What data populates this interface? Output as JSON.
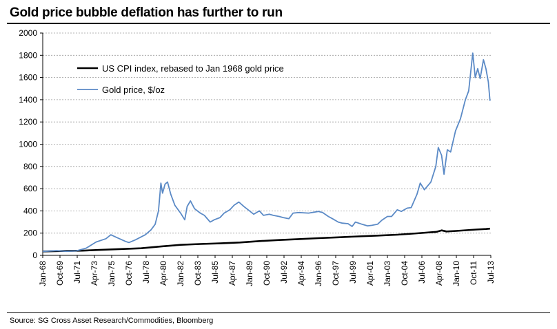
{
  "title": "Gold price bubble deflation has further to run",
  "source": "Source: SG Cross Asset Research/Commodities, Bloomberg",
  "chart_data": {
    "type": "line",
    "title": "Gold price bubble deflation has further to run",
    "xlabel": "",
    "ylabel": "",
    "ylim": [
      0,
      2000
    ],
    "yticks": [
      0,
      200,
      400,
      600,
      800,
      1000,
      1200,
      1400,
      1600,
      1800,
      2000
    ],
    "ytick_labels": [
      "0",
      "200",
      "400",
      "600",
      "800",
      "1000",
      "1200",
      "1400",
      "1600",
      "1800",
      "2000"
    ],
    "xlim": [
      "1968-01",
      "2013-07"
    ],
    "xtick_labels": [
      "Jan-68",
      "Oct-69",
      "Jul-71",
      "Apr-73",
      "Jan-75",
      "Oct-76",
      "Jul-78",
      "Apr-80",
      "Jan-82",
      "Oct-83",
      "Jul-85",
      "Apr-87",
      "Jan-89",
      "Oct-90",
      "Jul-92",
      "Apr-94",
      "Jan-96",
      "Oct-97",
      "Jul-99",
      "Apr-01",
      "Jan-03",
      "Oct-04",
      "Jul-06",
      "Apr-08",
      "Jan-10",
      "Oct-11",
      "Jul-13"
    ],
    "grid": true,
    "legend_position": "top-left",
    "colors": {
      "cpi": "#000000",
      "gold": "#5b8ac6"
    },
    "series": [
      {
        "name": "US CPI index, rebased to Jan 1968 gold price",
        "color": "#000000",
        "points": [
          [
            "1968-01",
            35
          ],
          [
            "1970-01",
            39
          ],
          [
            "1972-01",
            42
          ],
          [
            "1974-01",
            50
          ],
          [
            "1976-01",
            57
          ],
          [
            "1978-01",
            64
          ],
          [
            "1980-01",
            80
          ],
          [
            "1982-01",
            95
          ],
          [
            "1984-01",
            102
          ],
          [
            "1986-01",
            108
          ],
          [
            "1988-01",
            116
          ],
          [
            "1990-01",
            128
          ],
          [
            "1992-01",
            138
          ],
          [
            "1994-01",
            146
          ],
          [
            "1996-01",
            155
          ],
          [
            "1998-01",
            162
          ],
          [
            "2000-01",
            170
          ],
          [
            "2002-01",
            178
          ],
          [
            "2004-01",
            186
          ],
          [
            "2006-01",
            198
          ],
          [
            "2008-01",
            212
          ],
          [
            "2008-07",
            225
          ],
          [
            "2009-01",
            215
          ],
          [
            "2010-01",
            220
          ],
          [
            "2012-01",
            232
          ],
          [
            "2013-01",
            237
          ],
          [
            "2013-06",
            240
          ]
        ]
      },
      {
        "name": "Gold price, $/oz",
        "color": "#5b8ac6",
        "points": [
          [
            "1968-01",
            35
          ],
          [
            "1969-06",
            42
          ],
          [
            "1970-06",
            36
          ],
          [
            "1971-06",
            40
          ],
          [
            "1972-06",
            65
          ],
          [
            "1973-06",
            120
          ],
          [
            "1974-06",
            150
          ],
          [
            "1974-12",
            185
          ],
          [
            "1975-06",
            165
          ],
          [
            "1976-06",
            125
          ],
          [
            "1976-10",
            115
          ],
          [
            "1977-06",
            140
          ],
          [
            "1978-06",
            185
          ],
          [
            "1979-01",
            230
          ],
          [
            "1979-06",
            280
          ],
          [
            "1979-10",
            400
          ],
          [
            "1980-01",
            650
          ],
          [
            "1980-03",
            560
          ],
          [
            "1980-06",
            640
          ],
          [
            "1980-09",
            660
          ],
          [
            "1981-01",
            550
          ],
          [
            "1981-06",
            450
          ],
          [
            "1982-01",
            380
          ],
          [
            "1982-06",
            320
          ],
          [
            "1982-09",
            440
          ],
          [
            "1983-01",
            490
          ],
          [
            "1983-06",
            420
          ],
          [
            "1984-01",
            380
          ],
          [
            "1984-06",
            360
          ],
          [
            "1985-01",
            300
          ],
          [
            "1985-06",
            320
          ],
          [
            "1986-01",
            340
          ],
          [
            "1986-06",
            380
          ],
          [
            "1987-01",
            410
          ],
          [
            "1987-06",
            450
          ],
          [
            "1987-12",
            480
          ],
          [
            "1988-06",
            440
          ],
          [
            "1989-01",
            400
          ],
          [
            "1989-06",
            370
          ],
          [
            "1990-01",
            400
          ],
          [
            "1990-06",
            360
          ],
          [
            "1991-01",
            370
          ],
          [
            "1991-06",
            360
          ],
          [
            "1992-01",
            350
          ],
          [
            "1992-06",
            340
          ],
          [
            "1993-01",
            330
          ],
          [
            "1993-06",
            380
          ],
          [
            "1994-01",
            385
          ],
          [
            "1995-01",
            380
          ],
          [
            "1996-01",
            395
          ],
          [
            "1996-06",
            385
          ],
          [
            "1997-01",
            350
          ],
          [
            "1997-06",
            330
          ],
          [
            "1998-01",
            300
          ],
          [
            "1998-06",
            290
          ],
          [
            "1999-01",
            285
          ],
          [
            "1999-06",
            260
          ],
          [
            "1999-10",
            300
          ],
          [
            "2000-06",
            280
          ],
          [
            "2001-01",
            265
          ],
          [
            "2001-06",
            270
          ],
          [
            "2002-01",
            280
          ],
          [
            "2002-06",
            315
          ],
          [
            "2003-01",
            350
          ],
          [
            "2003-06",
            350
          ],
          [
            "2004-01",
            410
          ],
          [
            "2004-06",
            395
          ],
          [
            "2005-01",
            425
          ],
          [
            "2005-06",
            430
          ],
          [
            "2006-01",
            550
          ],
          [
            "2006-05",
            650
          ],
          [
            "2006-10",
            590
          ],
          [
            "2007-06",
            660
          ],
          [
            "2007-12",
            800
          ],
          [
            "2008-03",
            970
          ],
          [
            "2008-07",
            900
          ],
          [
            "2008-10",
            730
          ],
          [
            "2009-02",
            950
          ],
          [
            "2009-06",
            930
          ],
          [
            "2009-12",
            1120
          ],
          [
            "2010-06",
            1230
          ],
          [
            "2010-12",
            1400
          ],
          [
            "2011-04",
            1480
          ],
          [
            "2011-09",
            1820
          ],
          [
            "2011-12",
            1600
          ],
          [
            "2012-03",
            1680
          ],
          [
            "2012-06",
            1590
          ],
          [
            "2012-10",
            1760
          ],
          [
            "2013-01",
            1680
          ],
          [
            "2013-04",
            1560
          ],
          [
            "2013-06",
            1390
          ]
        ]
      }
    ]
  }
}
